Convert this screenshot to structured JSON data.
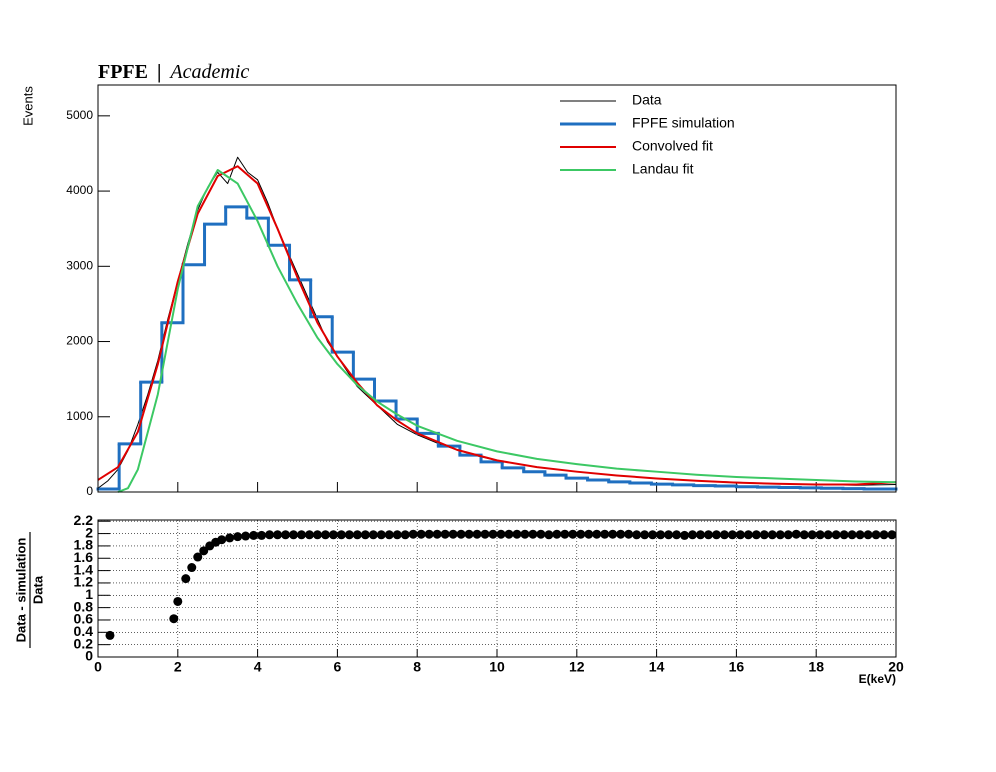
{
  "header": {
    "brand": "FPFE",
    "separator": "|",
    "tag": "Academic"
  },
  "chart_data": [
    {
      "type": "line",
      "ylabel": "Events",
      "legend": "upper right",
      "xlim": [
        0,
        20
      ],
      "ylim": [
        0,
        5410
      ],
      "xticks": [
        0,
        2,
        4,
        6,
        8,
        10,
        12,
        14,
        16,
        18,
        20
      ],
      "yticks": [
        0,
        1000,
        2000,
        3000,
        4000,
        5000
      ],
      "series": [
        {
          "name": "Data",
          "color": "#000000",
          "width": 1,
          "x": [
            0,
            0.25,
            0.5,
            0.75,
            1,
            1.25,
            1.5,
            1.75,
            2,
            2.25,
            2.5,
            2.75,
            3,
            3.25,
            3.5,
            3.75,
            4,
            4.25,
            4.5,
            4.75,
            5,
            5.25,
            5.5,
            5.75,
            6,
            6.5,
            7,
            7.5,
            8,
            8.5,
            9,
            9.5,
            10,
            11,
            12,
            13,
            14,
            15,
            16,
            17,
            18,
            19,
            20
          ],
          "values": [
            50,
            150,
            300,
            550,
            900,
            1300,
            1750,
            2300,
            2800,
            3300,
            3750,
            4050,
            4250,
            4100,
            4450,
            4250,
            4150,
            3850,
            3500,
            3200,
            2900,
            2600,
            2300,
            2000,
            1800,
            1400,
            1150,
            900,
            760,
            650,
            560,
            480,
            420,
            330,
            270,
            220,
            180,
            150,
            130,
            110,
            100,
            90,
            100
          ]
        },
        {
          "name": "FPFE simulation",
          "color": "#1f6fc0",
          "width": 3,
          "bins": [
            0,
            0.53,
            1.07,
            1.6,
            2.13,
            2.67,
            3.2,
            3.73,
            4.27,
            4.8,
            5.33,
            5.87,
            6.4,
            6.93,
            7.47,
            8,
            8.53,
            9.07,
            9.6,
            10.13,
            10.67,
            11.2,
            11.73,
            12.27,
            12.8,
            13.33,
            13.87,
            14.4,
            14.93,
            15.47,
            16,
            16.53,
            17.07,
            17.6,
            18.13,
            18.67,
            19.2,
            19.73,
            20
          ],
          "values": [
            40,
            640,
            1460,
            2250,
            3020,
            3560,
            3790,
            3640,
            3280,
            2820,
            2330,
            1860,
            1500,
            1210,
            970,
            780,
            610,
            490,
            400,
            320,
            270,
            225,
            185,
            160,
            135,
            120,
            105,
            95,
            85,
            80,
            70,
            65,
            60,
            55,
            50,
            45,
            40,
            40
          ]
        },
        {
          "name": "Convolved fit",
          "color": "#e00000",
          "width": 2,
          "x": [
            0,
            0.5,
            1,
            1.5,
            2,
            2.5,
            3,
            3.5,
            4,
            4.5,
            5,
            5.5,
            6,
            6.5,
            7,
            7.5,
            8,
            9,
            10,
            11,
            12,
            13,
            14,
            15,
            16,
            17,
            18,
            19,
            20
          ],
          "values": [
            160,
            330,
            800,
            1700,
            2800,
            3700,
            4200,
            4330,
            4100,
            3500,
            2850,
            2250,
            1800,
            1450,
            1150,
            950,
            780,
            560,
            420,
            330,
            270,
            220,
            180,
            150,
            125,
            110,
            100,
            100,
            130
          ]
        },
        {
          "name": "Landau fit",
          "color": "#3cc864",
          "width": 2,
          "x": [
            0.5,
            0.75,
            1,
            1.5,
            2,
            2.5,
            3,
            3.5,
            4,
            4.5,
            5,
            5.5,
            6,
            6.5,
            7,
            7.5,
            8,
            9,
            10,
            11,
            12,
            13,
            14,
            15,
            16,
            17,
            18,
            19,
            20
          ],
          "values": [
            0,
            50,
            300,
            1300,
            2700,
            3800,
            4280,
            4100,
            3600,
            3000,
            2500,
            2050,
            1700,
            1420,
            1200,
            1030,
            880,
            680,
            540,
            440,
            370,
            310,
            270,
            230,
            200,
            180,
            160,
            140,
            130
          ]
        }
      ]
    },
    {
      "type": "scatter",
      "ylabel": "Data - simulation",
      "ylabel_denominator": "Data",
      "xlabel": "E(keV)",
      "grid": true,
      "color": "#000000",
      "xlim": [
        0,
        20
      ],
      "ylim": [
        0,
        2.22
      ],
      "xticks": [
        0,
        2,
        4,
        6,
        8,
        10,
        12,
        14,
        16,
        18,
        20
      ],
      "yticks": [
        0,
        0.2,
        0.4,
        0.6,
        0.8,
        1,
        1.2,
        1.4,
        1.6,
        1.8,
        2,
        2.2
      ],
      "x": [
        0.3,
        1.9,
        2.0,
        2.2,
        2.35,
        2.5,
        2.65,
        2.8,
        2.95,
        3.1,
        3.3,
        3.5,
        3.7,
        3.9,
        4.1,
        4.3,
        4.5,
        4.7,
        4.9,
        5.1,
        5.3,
        5.5,
        5.7,
        5.9,
        6.1,
        6.3,
        6.5,
        6.7,
        6.9,
        7.1,
        7.3,
        7.5,
        7.7,
        7.9,
        8.1,
        8.3,
        8.5,
        8.7,
        8.9,
        9.1,
        9.3,
        9.5,
        9.7,
        9.9,
        10.1,
        10.3,
        10.5,
        10.7,
        10.9,
        11.1,
        11.3,
        11.5,
        11.7,
        11.9,
        12.1,
        12.3,
        12.5,
        12.7,
        12.9,
        13.1,
        13.3,
        13.5,
        13.7,
        13.9,
        14.1,
        14.3,
        14.5,
        14.7,
        14.9,
        15.1,
        15.3,
        15.5,
        15.7,
        15.9,
        16.1,
        16.3,
        16.5,
        16.7,
        16.9,
        17.1,
        17.3,
        17.5,
        17.7,
        17.9,
        18.1,
        18.3,
        18.5,
        18.7,
        18.9,
        19.1,
        19.3,
        19.5,
        19.7,
        19.9
      ],
      "values": [
        0.35,
        0.62,
        0.9,
        1.27,
        1.45,
        1.62,
        1.72,
        1.8,
        1.86,
        1.9,
        1.93,
        1.95,
        1.96,
        1.97,
        1.97,
        1.98,
        1.98,
        1.98,
        1.98,
        1.98,
        1.98,
        1.98,
        1.98,
        1.98,
        1.98,
        1.98,
        1.98,
        1.98,
        1.98,
        1.98,
        1.98,
        1.98,
        1.98,
        1.99,
        1.99,
        1.99,
        1.99,
        1.99,
        1.99,
        1.99,
        1.99,
        1.99,
        1.99,
        1.99,
        1.99,
        1.99,
        1.99,
        1.99,
        1.99,
        1.99,
        1.98,
        1.99,
        1.99,
        1.99,
        1.99,
        1.99,
        1.99,
        1.99,
        1.99,
        1.99,
        1.99,
        1.98,
        1.98,
        1.98,
        1.98,
        1.98,
        1.98,
        1.97,
        1.98,
        1.98,
        1.98,
        1.98,
        1.98,
        1.98,
        1.98,
        1.98,
        1.98,
        1.98,
        1.98,
        1.98,
        1.98,
        1.99,
        1.98,
        1.98,
        1.98,
        1.98,
        1.98,
        1.98,
        1.98,
        1.98,
        1.98,
        1.98,
        1.98,
        1.98
      ]
    }
  ]
}
